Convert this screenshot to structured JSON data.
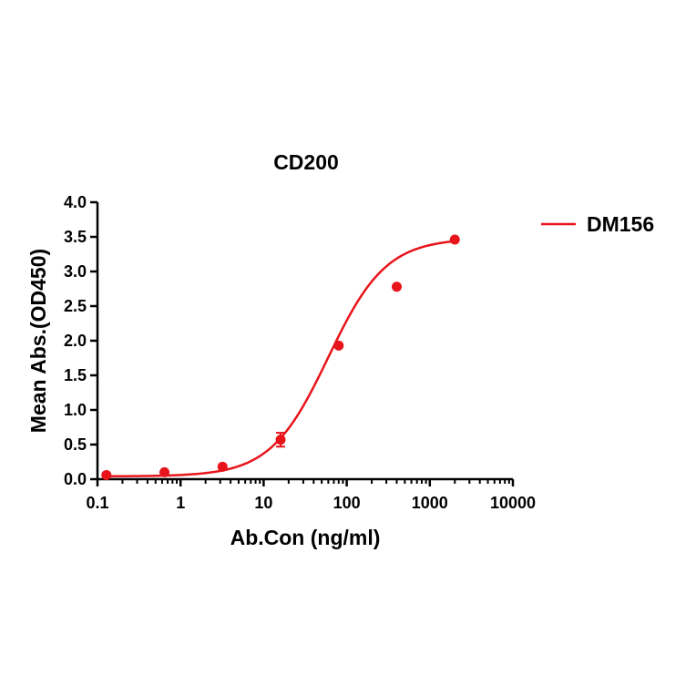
{
  "chart_data": {
    "type": "scatter",
    "title": "CD200",
    "xlabel": "Ab.Con (ng/ml)",
    "ylabel": "Mean Abs.(OD450)",
    "x_scale": "log",
    "xlim": [
      0.1,
      10000
    ],
    "ylim": [
      0,
      4.0
    ],
    "x_ticks": [
      "0.1",
      "1",
      "10",
      "100",
      "1000",
      "10000"
    ],
    "y_ticks": [
      "0.0",
      "0.5",
      "1.0",
      "1.5",
      "2.0",
      "2.5",
      "3.0",
      "3.5",
      "4.0"
    ],
    "legend_position": "top-right",
    "grid": false,
    "series": [
      {
        "name": "DM156",
        "color": "#e8141b",
        "x": [
          0.128,
          0.64,
          3.2,
          16,
          80,
          400,
          2000
        ],
        "y": [
          0.06,
          0.1,
          0.18,
          0.57,
          1.93,
          2.78,
          3.46
        ],
        "error": [
          0,
          0,
          0,
          0.1,
          0,
          0,
          0
        ],
        "fit": "four-parameter logistic",
        "fit_params": {
          "bottom": 0.04,
          "top": 3.48,
          "ec50": 60,
          "hill": 1.25
        }
      }
    ]
  }
}
